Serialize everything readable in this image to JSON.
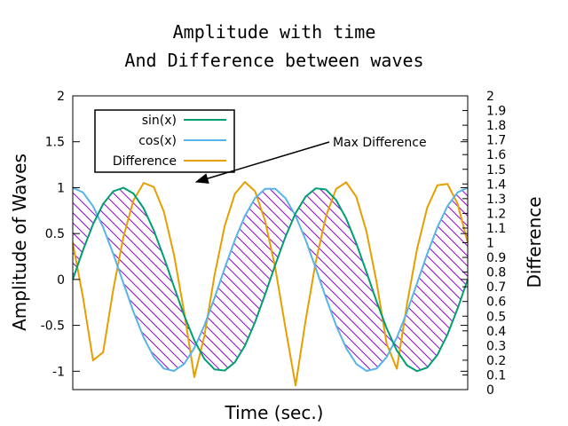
{
  "chart_data": {
    "type": "line",
    "title": [
      "Amplitude with time",
      "And Difference between waves"
    ],
    "xlabel": "Time (sec.)",
    "ylabel": "Amplitude of Waves",
    "y2label": "Difference",
    "xlim": [
      0,
      12.566
    ],
    "ylim": [
      -1.2,
      2
    ],
    "y2lim": [
      0,
      2
    ],
    "yticks": [
      "-1",
      "-0.5",
      "0",
      "0.5",
      "1",
      "1.5",
      "2"
    ],
    "y2ticks": [
      "0",
      "0.1",
      "0.2",
      "0.3",
      "0.4",
      "0.5",
      "0.6",
      "0.7",
      "0.8",
      "0.9",
      "1",
      "1.1",
      "1.2",
      "1.3",
      "1.4",
      "1.5",
      "1.6",
      "1.7",
      "1.8",
      "1.9",
      "2"
    ],
    "grid": false,
    "legend_position": "top-left",
    "fill": {
      "between": [
        "sin(x)",
        "cos(x)"
      ],
      "pattern": "diagonal-hatch",
      "color": "#9400d3"
    },
    "series": [
      {
        "name": "sin(x)",
        "color": "#009e73",
        "axis": "y",
        "function": "sin",
        "samples": 40
      },
      {
        "name": "cos(x)",
        "color": "#56b4e9",
        "axis": "y",
        "function": "cos",
        "samples": 40
      },
      {
        "name": "Difference",
        "color": "#e69f00",
        "axis": "y2",
        "function": "abs(sin-cos)",
        "samples": 40
      }
    ],
    "annotation": {
      "text": "Max Difference",
      "target": [
        3.93,
        1.414
      ]
    }
  }
}
